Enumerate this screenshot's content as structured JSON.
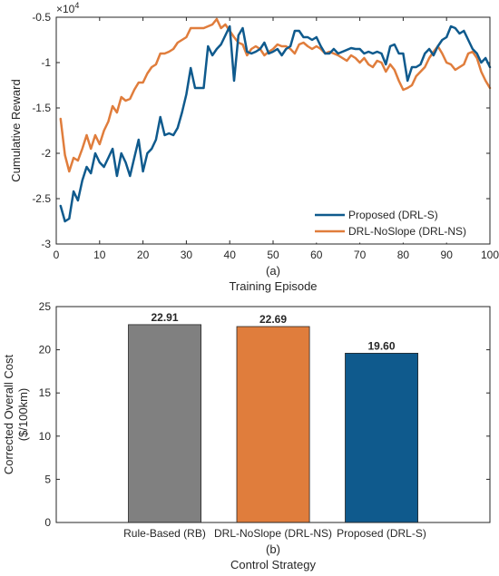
{
  "chart_data": [
    {
      "type": "line",
      "caption": "(a)",
      "xlabel": "Training Episode",
      "ylabel": "Cumulative Reward",
      "exponent_label": "×10",
      "exponent_power": "4",
      "xlim": [
        0,
        100
      ],
      "ylim": [
        -3,
        -0.5
      ],
      "x_ticks": [
        0,
        10,
        20,
        30,
        40,
        50,
        60,
        70,
        80,
        90,
        100
      ],
      "y_ticks": [
        -3,
        -2.5,
        -2,
        -1.5,
        -1,
        -0.5
      ],
      "y_tick_labels": [
        "-3",
        "-2.5",
        "-2",
        "-1.5",
        "-1",
        "-0.5"
      ],
      "legend_position": "bottom-right",
      "x": [
        1,
        2,
        3,
        4,
        5,
        6,
        7,
        8,
        9,
        10,
        11,
        12,
        13,
        14,
        15,
        16,
        17,
        18,
        19,
        20,
        21,
        22,
        23,
        24,
        25,
        26,
        27,
        28,
        29,
        30,
        31,
        32,
        33,
        34,
        35,
        36,
        37,
        38,
        39,
        40,
        41,
        42,
        43,
        44,
        45,
        46,
        47,
        48,
        49,
        50,
        51,
        52,
        53,
        54,
        55,
        56,
        57,
        58,
        59,
        60,
        61,
        62,
        63,
        64,
        65,
        66,
        67,
        68,
        69,
        70,
        71,
        72,
        73,
        74,
        75,
        76,
        77,
        78,
        79,
        80,
        81,
        82,
        83,
        84,
        85,
        86,
        87,
        88,
        89,
        90,
        91,
        92,
        93,
        94,
        95,
        96,
        97,
        98,
        99,
        100
      ],
      "series": [
        {
          "name": "Proposed (DRL-S)",
          "color": "#0f5a8d",
          "values": [
            -2.58,
            -2.75,
            -2.72,
            -2.42,
            -2.52,
            -2.3,
            -2.15,
            -2.22,
            -2.0,
            -2.1,
            -2.15,
            -2.05,
            -1.95,
            -2.25,
            -2.0,
            -2.1,
            -2.25,
            -2.05,
            -1.85,
            -2.2,
            -2.0,
            -1.95,
            -1.85,
            -1.6,
            -1.8,
            -1.78,
            -1.8,
            -1.72,
            -1.55,
            -1.35,
            -1.06,
            -1.28,
            -1.28,
            -1.28,
            -0.82,
            -0.92,
            -0.85,
            -0.8,
            -0.7,
            -0.6,
            -1.2,
            -0.7,
            -0.62,
            -0.88,
            -0.9,
            -0.88,
            -0.85,
            -0.78,
            -0.9,
            -0.88,
            -0.85,
            -0.92,
            -0.85,
            -0.82,
            -0.65,
            -0.65,
            -0.72,
            -0.72,
            -0.75,
            -0.72,
            -0.82,
            -0.9,
            -0.9,
            -0.85,
            -0.9,
            -0.88,
            -0.86,
            -0.84,
            -0.85,
            -0.85,
            -0.9,
            -0.88,
            -0.9,
            -0.88,
            -0.9,
            -1.02,
            -0.82,
            -0.8,
            -0.9,
            -0.9,
            -1.2,
            -1.05,
            -1.05,
            -1.02,
            -0.9,
            -0.85,
            -0.92,
            -0.82,
            -0.75,
            -0.72,
            -0.6,
            -0.62,
            -0.68,
            -0.65,
            -0.75,
            -0.85,
            -0.9,
            -1.0,
            -0.95,
            -1.05
          ]
        },
        {
          "name": "DRL-NoSlope (DRL-NS)",
          "color": "#e07d3c",
          "values": [
            -1.62,
            -2.02,
            -2.2,
            -2.05,
            -2.08,
            -1.95,
            -1.8,
            -1.95,
            -1.8,
            -1.9,
            -1.75,
            -1.65,
            -1.48,
            -1.55,
            -1.38,
            -1.42,
            -1.4,
            -1.3,
            -1.22,
            -1.22,
            -1.12,
            -1.05,
            -1.02,
            -0.9,
            -0.9,
            -0.88,
            -0.85,
            -0.78,
            -0.75,
            -0.72,
            -0.62,
            -0.62,
            -0.62,
            -0.62,
            -0.6,
            -0.58,
            -0.52,
            -0.62,
            -0.58,
            -0.65,
            -0.72,
            -0.78,
            -0.8,
            -0.92,
            -0.85,
            -0.82,
            -0.85,
            -0.92,
            -0.88,
            -0.85,
            -0.8,
            -0.82,
            -0.82,
            -0.85,
            -0.9,
            -0.8,
            -0.78,
            -0.82,
            -0.85,
            -0.82,
            -0.85,
            -0.9,
            -0.88,
            -0.9,
            -0.92,
            -0.95,
            -0.98,
            -0.92,
            -0.95,
            -1.0,
            -0.95,
            -1.02,
            -1.05,
            -0.98,
            -1.0,
            -1.1,
            -1.02,
            -1.08,
            -1.2,
            -1.3,
            -1.28,
            -1.25,
            -1.15,
            -1.1,
            -1.05,
            -0.95,
            -0.88,
            -0.82,
            -0.9,
            -1.0,
            -1.02,
            -1.08,
            -1.05,
            -1.02,
            -0.9,
            -0.88,
            -0.95,
            -1.1,
            -1.2,
            -1.28
          ]
        }
      ]
    },
    {
      "type": "bar",
      "caption": "(b)",
      "xlabel": "Control Strategy",
      "ylabel_line1": "Corrected Overall Cost",
      "ylabel_line2": "($/100km)",
      "ylim": [
        0,
        25
      ],
      "y_ticks": [
        0,
        5,
        10,
        15,
        20,
        25
      ],
      "categories": [
        "Rule-Based (RB)",
        "DRL-NoSlope (DRL-NS)",
        "Proposed (DRL-S)"
      ],
      "values": [
        22.91,
        22.69,
        19.6
      ],
      "value_labels": [
        "22.91",
        "22.69",
        "19.60"
      ],
      "colors": [
        "#808080",
        "#e07d3c",
        "#0f5a8d"
      ]
    }
  ]
}
